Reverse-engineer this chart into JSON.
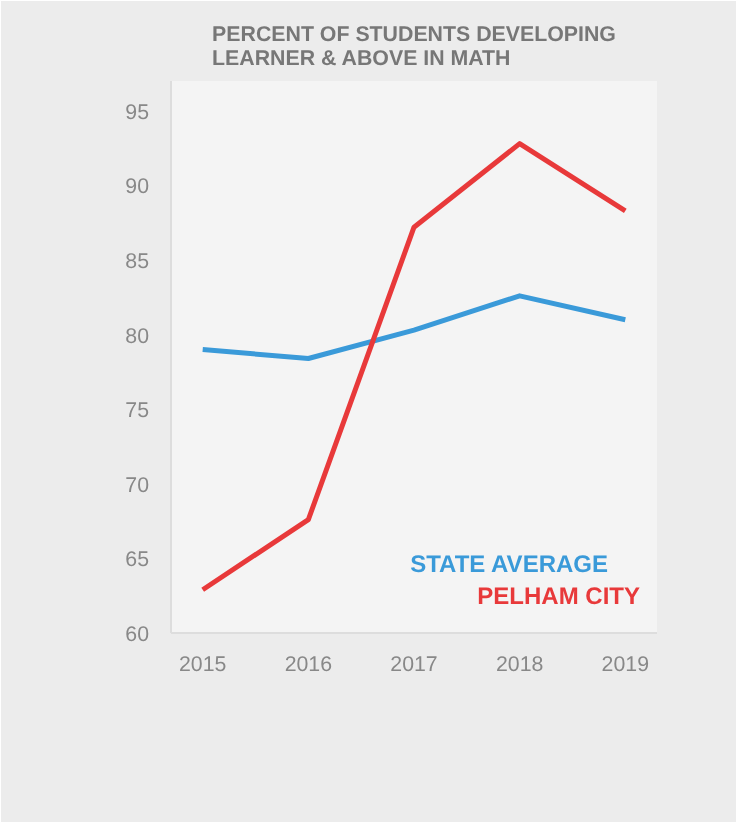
{
  "chart_data": {
    "type": "line",
    "title": "PERCENT OF STUDENTS DEVELOPING\nLEARNER & ABOVE IN MATH",
    "x": [
      2015,
      2016,
      2017,
      2018,
      2019
    ],
    "xlim": [
      2014.7,
      2019.3
    ],
    "xticks": [
      2015,
      2016,
      2017,
      2018,
      2019
    ],
    "ylim": [
      60,
      97
    ],
    "yticks": [
      60,
      65,
      70,
      75,
      80,
      85,
      90,
      95
    ],
    "grid": false,
    "legend": "bottom right",
    "marker": "none",
    "line_style": "solid",
    "series": [
      {
        "name": "STATE AVERAGE",
        "color": "#3a9ad9",
        "values": [
          79.0,
          78.4,
          80.3,
          82.6,
          81.0
        ]
      },
      {
        "name": "PELHAM CITY",
        "color": "#e8393a",
        "values": [
          62.9,
          67.6,
          87.2,
          92.8,
          88.3
        ]
      }
    ]
  }
}
